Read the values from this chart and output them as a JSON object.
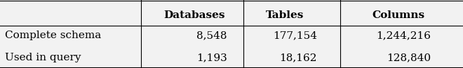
{
  "col_labels": [
    "Databases",
    "Tables",
    "Columns"
  ],
  "row_labels": [
    "Complete schema",
    "Used in query"
  ],
  "data": [
    [
      "8,548",
      "177,154",
      "1,244,216"
    ],
    [
      "1,193",
      "18,162",
      "128,840"
    ]
  ],
  "background_color": "#f2f2f2",
  "fig_width": 6.6,
  "fig_height": 0.98
}
